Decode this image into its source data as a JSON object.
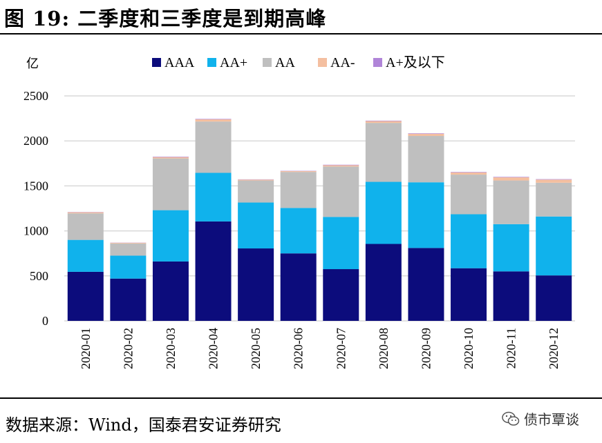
{
  "title": "图  19:  二季度和三季度是到期高峰",
  "source": "数据来源：Wind，国泰君安证券研究",
  "watermark": "债市覃谈",
  "chart_data": {
    "type": "bar",
    "stacked": true,
    "ylabel": "亿",
    "ylim": [
      0,
      2500
    ],
    "yticks": [
      0,
      500,
      1000,
      1500,
      2000,
      2500
    ],
    "grid": true,
    "legend_position": "top",
    "categories": [
      "2020-01",
      "2020-02",
      "2020-03",
      "2020-04",
      "2020-05",
      "2020-06",
      "2020-07",
      "2020-08",
      "2020-09",
      "2020-10",
      "2020-11",
      "2020-12"
    ],
    "series": [
      {
        "name": "AAA",
        "color": "#0c0c7c",
        "values": [
          545,
          470,
          660,
          1105,
          805,
          750,
          575,
          855,
          810,
          585,
          550,
          505
        ]
      },
      {
        "name": "AA+",
        "color": "#10b2ec",
        "values": [
          355,
          255,
          570,
          540,
          510,
          505,
          580,
          690,
          730,
          600,
          525,
          655
        ]
      },
      {
        "name": "AA",
        "color": "#bfbfbf",
        "values": [
          295,
          135,
          575,
          570,
          245,
          400,
          560,
          655,
          515,
          440,
          485,
          375
        ]
      },
      {
        "name": "AA-",
        "color": "#f4bfa0",
        "values": [
          12,
          8,
          15,
          25,
          10,
          10,
          15,
          20,
          25,
          25,
          35,
          35
        ]
      },
      {
        "name": "A+及以下",
        "color": "#b085d8",
        "values": [
          3,
          2,
          5,
          5,
          3,
          3,
          5,
          5,
          5,
          5,
          5,
          5
        ]
      }
    ]
  }
}
